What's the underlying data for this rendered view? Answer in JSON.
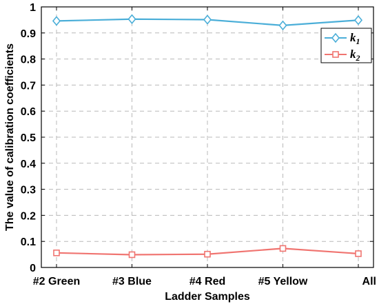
{
  "chart_data": {
    "type": "line",
    "categories": [
      "#2 Green",
      "#3 Blue",
      "#4 Red",
      "#5 Yellow",
      "All"
    ],
    "series": [
      {
        "name": "k",
        "subscript": "1",
        "values": [
          0.946,
          0.953,
          0.951,
          0.929,
          0.949
        ],
        "color": "#4aaed8",
        "marker": "diamond"
      },
      {
        "name": "k",
        "subscript": "2",
        "values": [
          0.056,
          0.049,
          0.051,
          0.073,
          0.053
        ],
        "color": "#f07470",
        "marker": "square"
      }
    ],
    "xlabel": "Ladder Samples",
    "ylabel": "The value of calibration coefficients",
    "ylim": [
      0,
      1
    ],
    "yticks": [
      "0",
      "0.1",
      "0.2",
      "0.3",
      "0.4",
      "0.5",
      "0.6",
      "0.7",
      "0.8",
      "0.9",
      "1"
    ],
    "grid": true,
    "legend_position": "top-right"
  }
}
